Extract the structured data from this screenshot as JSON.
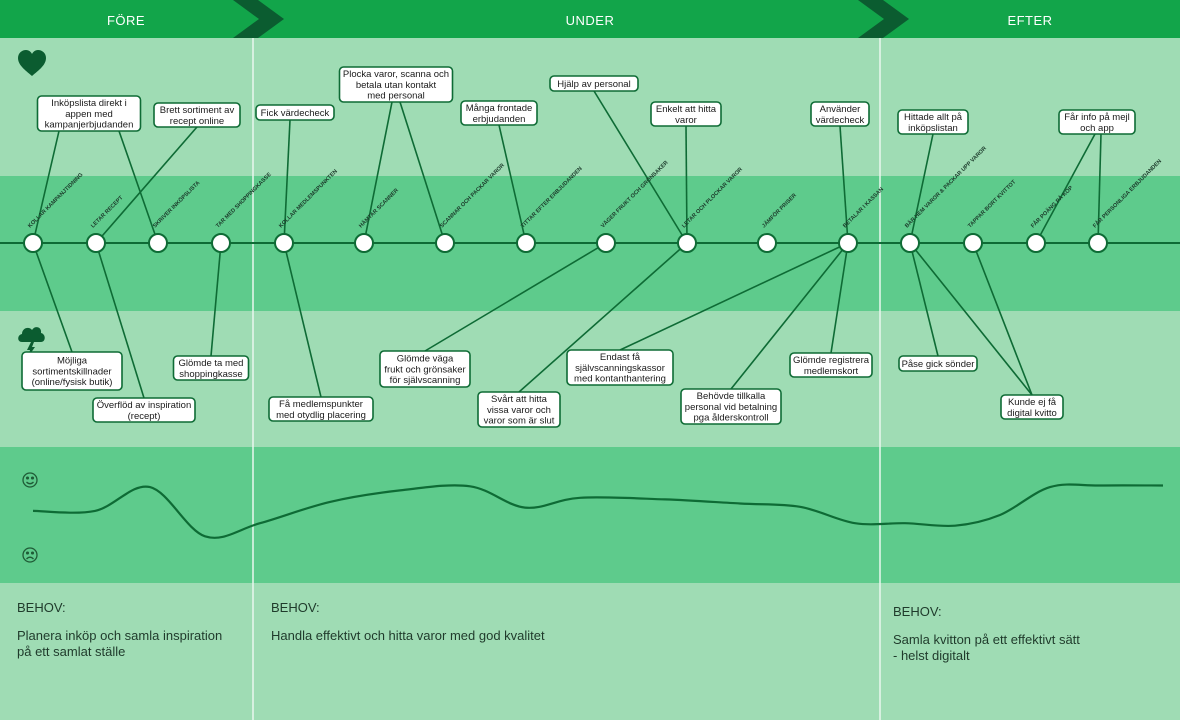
{
  "colors": {
    "header": "#12a54a",
    "header_arrow": "#0b5c30",
    "band_light": "#9fdcb4",
    "band_dark": "#5ecb8c",
    "line": "#0e6b35",
    "text": "#1f3a2b"
  },
  "phases": [
    {
      "label": "FÖRE"
    },
    {
      "label": "UNDER"
    },
    {
      "label": "EFTER"
    }
  ],
  "icons": {
    "heart": "heart-icon",
    "cloud": "storm-cloud-icon",
    "happy": "smiley-happy-icon",
    "sad": "smiley-sad-icon"
  },
  "steps": [
    {
      "label": "KOLLAR KAMPANJTIDNING"
    },
    {
      "label": "LETAR RECEPT"
    },
    {
      "label": "SKRIVER INKÖPSLISTA"
    },
    {
      "label": "TAR MED SHOPPINGKASSE"
    },
    {
      "label": "KOLLAR MEDLEMSPUNKTEN"
    },
    {
      "label": "HÄMTAR SCANNER"
    },
    {
      "label": "SCANNAR OCH PACKAR VAROR"
    },
    {
      "label": "TITTAR EFTER ERBJUDANDEN"
    },
    {
      "label": "VÄGER FRUKT OCH GRÖNSAKER"
    },
    {
      "label": "LETAR  OCH PLOCKAR VAROR"
    },
    {
      "label": "JÄMFÖR PRISER"
    },
    {
      "label": "BETALAR I KASSAN"
    },
    {
      "label": "BÄR HEM VAROR & PACKAR UPP VAROR"
    },
    {
      "label": "TAPPAR BORT KVITTOT"
    },
    {
      "label": "FÅR POÄNG PÅ KÖP"
    },
    {
      "label": "FÅR PERSONLIGA ERBJUDANDEN"
    }
  ],
  "positives": [
    {
      "lines": [
        "Inköpslista direkt i",
        "appen med",
        "kampanjerbjudanden"
      ],
      "steps": [
        0,
        2
      ]
    },
    {
      "lines": [
        "Brett sortiment av",
        "recept online"
      ],
      "steps": [
        1
      ]
    },
    {
      "lines": [
        "Fick värdecheck"
      ],
      "steps": [
        4
      ]
    },
    {
      "lines": [
        "Plocka varor, scanna och",
        "betala utan kontakt",
        "med personal"
      ],
      "steps": [
        5,
        6
      ]
    },
    {
      "lines": [
        "Många frontade",
        "erbjudanden"
      ],
      "steps": [
        7
      ]
    },
    {
      "lines": [
        "Hjälp av personal"
      ],
      "steps": [
        9
      ]
    },
    {
      "lines": [
        "Enkelt att hitta",
        "varor"
      ],
      "steps": [
        9
      ]
    },
    {
      "lines": [
        "Använder",
        "värdecheck"
      ],
      "steps": [
        11
      ]
    },
    {
      "lines": [
        "Hittade allt på",
        "inköpslistan"
      ],
      "steps": [
        12
      ]
    },
    {
      "lines": [
        "Får info på mejl",
        "och app"
      ],
      "steps": [
        14,
        15
      ]
    }
  ],
  "negatives": [
    {
      "lines": [
        "Möjliga",
        "sortimentskillnader",
        "(online/fysisk butik)"
      ],
      "steps": [
        0
      ]
    },
    {
      "lines": [
        "Överflöd av inspiration",
        "(recept)"
      ],
      "steps": [
        1
      ]
    },
    {
      "lines": [
        "Glömde ta med",
        "shoppingkasse"
      ],
      "steps": [
        3
      ]
    },
    {
      "lines": [
        "Få medlemspunkter",
        "med otydlig placering"
      ],
      "steps": [
        4
      ]
    },
    {
      "lines": [
        "Glömde väga",
        "frukt och grönsaker",
        "för självscanning"
      ],
      "steps": [
        8
      ]
    },
    {
      "lines": [
        "Svårt att hitta",
        "vissa varor och",
        "varor som är slut"
      ],
      "steps": [
        9
      ]
    },
    {
      "lines": [
        "Endast få",
        "självscanningskassor",
        "med kontanthantering"
      ],
      "steps": [
        11
      ]
    },
    {
      "lines": [
        "Behövde tillkalla",
        "personal vid betalning",
        "pga ålderskontroll"
      ],
      "steps": [
        11
      ]
    },
    {
      "lines": [
        "Glömde registrera",
        "medlemskort"
      ],
      "steps": [
        11
      ]
    },
    {
      "lines": [
        "Påse gick sönder"
      ],
      "steps": [
        12
      ]
    },
    {
      "lines": [
        "Kunde ej få",
        "digital kvitto"
      ],
      "steps": [
        12,
        13
      ]
    }
  ],
  "emotion": {
    "scale": "0 = sad, 1 = happy",
    "values": [
      0.55,
      0.55,
      0.84,
      0.24,
      0.4,
      0.66,
      0.8,
      0.85,
      0.59,
      0.71,
      0.69,
      0.64,
      0.6,
      0.4,
      0.4,
      0.37,
      0.5,
      0.84,
      0.86,
      0.86
    ]
  },
  "needs": [
    {
      "title": "BEHOV:",
      "text": "Planera inköp och samla inspiration\npå ett samlat ställe"
    },
    {
      "title": "BEHOV:",
      "text": "Handla effektivt och hitta varor med god kvalitet"
    },
    {
      "title": "BEHOV:",
      "text": "Samla kvitton på ett effektivt sätt\n- helst digitalt"
    }
  ]
}
